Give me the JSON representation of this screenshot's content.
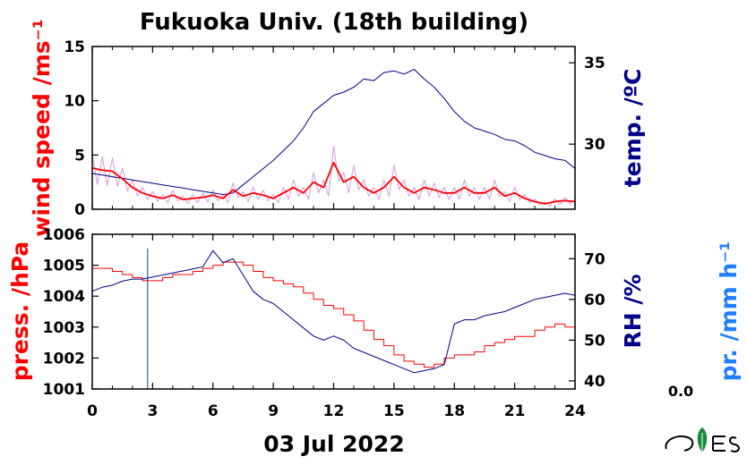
{
  "colors": {
    "wind": "#ff0000",
    "wind_raw": "#d899e0",
    "temp": "#00008b",
    "pressure": "#ff0000",
    "rh": "#00008b",
    "precip": "#1e7fff",
    "axes": "#000000"
  },
  "title": "Fukuoka Univ. (18th building)",
  "date_label": "03 Jul 2022",
  "logo_icon": "cres-leaf-logo",
  "precip_value": "0.0",
  "chart_data": [
    {
      "type": "line",
      "panel": "top",
      "x_ticks": [
        0,
        3,
        6,
        9,
        12,
        15,
        18,
        21,
        24
      ],
      "xlim": [
        0,
        24
      ],
      "left_axis": {
        "label": "wind speed /ms⁻¹",
        "ylim": [
          0,
          15
        ],
        "ticks": [
          0,
          5,
          10,
          15
        ]
      },
      "right_axis": {
        "label": "temp. /ºC",
        "ylim": [
          26,
          36
        ],
        "ticks": [
          30,
          35
        ]
      },
      "series": [
        {
          "axis": "left",
          "x": [
            0,
            0.5,
            1,
            1.5,
            2,
            2.5,
            3,
            3.5,
            4,
            4.5,
            5,
            5.5,
            6,
            6.5,
            7,
            7.5,
            8,
            8.5,
            9,
            9.5,
            10,
            10.5,
            11,
            11.5,
            12,
            12.5,
            13,
            13.5,
            14,
            14.5,
            15,
            15.5,
            16,
            16.5,
            17,
            17.5,
            18,
            18.5,
            19,
            19.5,
            20,
            20.5,
            21,
            21.5,
            22,
            22.5,
            23,
            23.5,
            24
          ],
          "values": [
            3.8,
            3.6,
            3.5,
            2.8,
            2.0,
            1.5,
            1.2,
            1.0,
            1.3,
            0.9,
            1.0,
            1.1,
            1.3,
            1.0,
            1.8,
            1.2,
            1.5,
            1.3,
            1.0,
            1.5,
            2.0,
            1.5,
            2.5,
            2.0,
            4.3,
            2.5,
            3.0,
            2.0,
            1.5,
            2.0,
            3.0,
            2.0,
            1.5,
            2.0,
            1.8,
            1.5,
            1.5,
            2.0,
            1.5,
            1.5,
            2.0,
            1.2,
            1.5,
            1.0,
            0.7,
            0.5,
            0.7,
            0.8,
            0.7
          ]
        },
        {
          "axis": "right",
          "x": [
            0,
            0.5,
            1,
            1.5,
            2,
            2.5,
            3,
            3.5,
            4,
            4.5,
            5,
            5.5,
            6,
            6.5,
            7,
            7.5,
            8,
            8.5,
            9,
            9.5,
            10,
            10.5,
            11,
            11.5,
            12,
            12.5,
            13,
            13.5,
            14,
            14.5,
            15,
            15.5,
            16,
            16.5,
            17,
            17.5,
            18,
            18.5,
            19,
            19.5,
            20,
            20.5,
            21,
            21.5,
            22,
            22.5,
            23,
            23.5,
            24
          ],
          "values": [
            28.2,
            28.1,
            28.0,
            27.9,
            27.8,
            27.7,
            27.6,
            27.5,
            27.4,
            27.3,
            27.2,
            27.1,
            27.0,
            26.9,
            27.0,
            27.5,
            28.0,
            28.5,
            29.0,
            29.6,
            30.2,
            31.0,
            32.0,
            32.5,
            33.0,
            33.2,
            33.5,
            34.0,
            33.9,
            34.4,
            34.5,
            34.3,
            34.6,
            34.0,
            33.5,
            32.8,
            32.0,
            31.4,
            31.0,
            30.8,
            30.6,
            30.3,
            30.2,
            29.9,
            29.5,
            29.3,
            29.1,
            29.0,
            28.5
          ]
        }
      ]
    },
    {
      "type": "line",
      "panel": "bottom",
      "x_ticks": [
        0,
        3,
        6,
        9,
        12,
        15,
        18,
        21,
        24
      ],
      "xlim": [
        0,
        24
      ],
      "left_axis": {
        "label": "press. /hPa",
        "ylim": [
          1001,
          1006
        ],
        "ticks": [
          1001,
          1002,
          1003,
          1004,
          1005,
          1006
        ]
      },
      "right_axis": {
        "label": "RH /%",
        "ylim": [
          38,
          76
        ],
        "ticks": [
          40,
          50,
          60,
          70
        ]
      },
      "far_right_axis": {
        "label": "pr. /mm h⁻¹"
      },
      "marker_x": 2.75,
      "series": [
        {
          "axis": "left",
          "x": [
            0,
            0.5,
            1,
            1.5,
            2,
            2.5,
            3,
            3.5,
            4,
            4.5,
            5,
            5.5,
            6,
            6.5,
            7,
            7.5,
            8,
            8.5,
            9,
            9.5,
            10,
            10.5,
            11,
            11.5,
            12,
            12.5,
            13,
            13.5,
            14,
            14.5,
            15,
            15.5,
            16,
            16.5,
            17,
            17.5,
            18,
            18.5,
            19,
            19.5,
            20,
            20.5,
            21,
            21.5,
            22,
            22.5,
            23,
            23.5,
            24
          ],
          "values": [
            1004.9,
            1004.9,
            1004.8,
            1004.7,
            1004.6,
            1004.5,
            1004.5,
            1004.6,
            1004.7,
            1004.7,
            1004.8,
            1004.9,
            1005.0,
            1005.1,
            1005.1,
            1005.0,
            1004.8,
            1004.6,
            1004.5,
            1004.4,
            1004.3,
            1004.1,
            1003.9,
            1003.7,
            1003.6,
            1003.4,
            1003.2,
            1002.9,
            1002.6,
            1002.4,
            1002.1,
            1001.9,
            1001.8,
            1001.7,
            1001.8,
            1002.0,
            1002.1,
            1002.1,
            1002.2,
            1002.4,
            1002.5,
            1002.6,
            1002.7,
            1002.7,
            1002.9,
            1003.0,
            1003.1,
            1003.0,
            1002.6
          ]
        },
        {
          "axis": "right",
          "x": [
            0,
            0.5,
            1,
            1.5,
            2,
            2.5,
            3,
            3.5,
            4,
            4.5,
            5,
            5.5,
            6,
            6.5,
            7,
            7.5,
            8,
            8.5,
            9,
            9.5,
            10,
            10.5,
            11,
            11.5,
            12,
            12.5,
            13,
            13.5,
            14,
            14.5,
            15,
            15.5,
            16,
            16.5,
            17,
            17.5,
            18,
            18.5,
            19,
            19.5,
            20,
            20.5,
            21,
            21.5,
            22,
            22.5,
            23,
            23.5,
            24
          ],
          "values": [
            62,
            63,
            63.5,
            64.5,
            65,
            65,
            65.5,
            66,
            66.5,
            67,
            67.5,
            68,
            72,
            69,
            70,
            66,
            62,
            60,
            59,
            57,
            55,
            53,
            51,
            50,
            51,
            50,
            48,
            47,
            46,
            45,
            44,
            43,
            42,
            42.5,
            43,
            44,
            54,
            55,
            55,
            56,
            56.5,
            57,
            58,
            59,
            60,
            60.5,
            61,
            61.5,
            61
          ]
        }
      ]
    }
  ]
}
